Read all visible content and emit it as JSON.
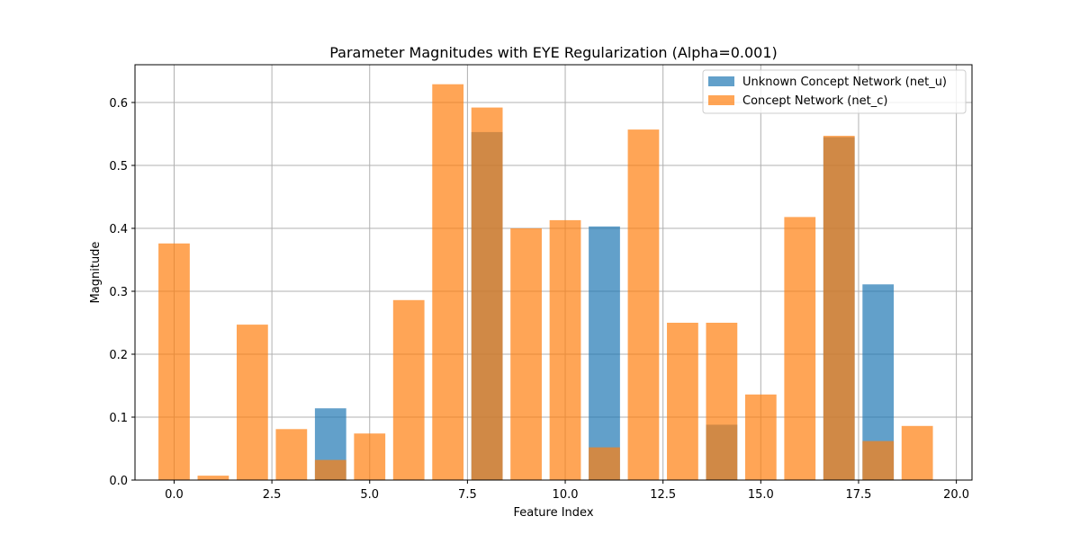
{
  "chart_data": {
    "type": "bar",
    "title": "Parameter Magnitudes with EYE Regularization (Alpha=0.001)",
    "xlabel": "Feature Index",
    "ylabel": "Magnitude",
    "xlim": [
      -1.0,
      20.4
    ],
    "ylim": [
      0,
      0.66
    ],
    "xticks": [
      0.0,
      2.5,
      5.0,
      7.5,
      10.0,
      12.5,
      15.0,
      17.5,
      20.0
    ],
    "xtick_labels": [
      "0.0",
      "2.5",
      "5.0",
      "7.5",
      "10.0",
      "12.5",
      "15.0",
      "17.5",
      "20.0"
    ],
    "yticks": [
      0.0,
      0.1,
      0.2,
      0.3,
      0.4,
      0.5,
      0.6
    ],
    "ytick_labels": [
      "0.0",
      "0.1",
      "0.2",
      "0.3",
      "0.4",
      "0.5",
      "0.6"
    ],
    "grid": true,
    "legend_position": "top-right",
    "x": [
      0,
      1,
      2,
      3,
      4,
      5,
      6,
      7,
      8,
      9,
      10,
      11,
      12,
      13,
      14,
      15,
      16,
      17,
      18,
      19
    ],
    "series": [
      {
        "name": "Unknown Concept Network (net_u)",
        "color": "#1f77b4",
        "opacity": 0.7,
        "values": [
          0.0,
          0.0,
          0.0,
          0.0,
          0.114,
          0.0,
          0.0,
          0.0,
          0.553,
          0.0,
          0.0,
          0.403,
          0.0,
          0.0,
          0.088,
          0.0,
          0.0,
          0.545,
          0.311,
          0.0
        ]
      },
      {
        "name": "Concept Network (net_c)",
        "color": "#ff7f0e",
        "opacity": 0.7,
        "values": [
          0.376,
          0.007,
          0.247,
          0.081,
          0.032,
          0.074,
          0.286,
          0.629,
          0.592,
          0.4,
          0.413,
          0.052,
          0.557,
          0.25,
          0.25,
          0.136,
          0.418,
          0.547,
          0.062,
          0.086
        ]
      }
    ]
  }
}
